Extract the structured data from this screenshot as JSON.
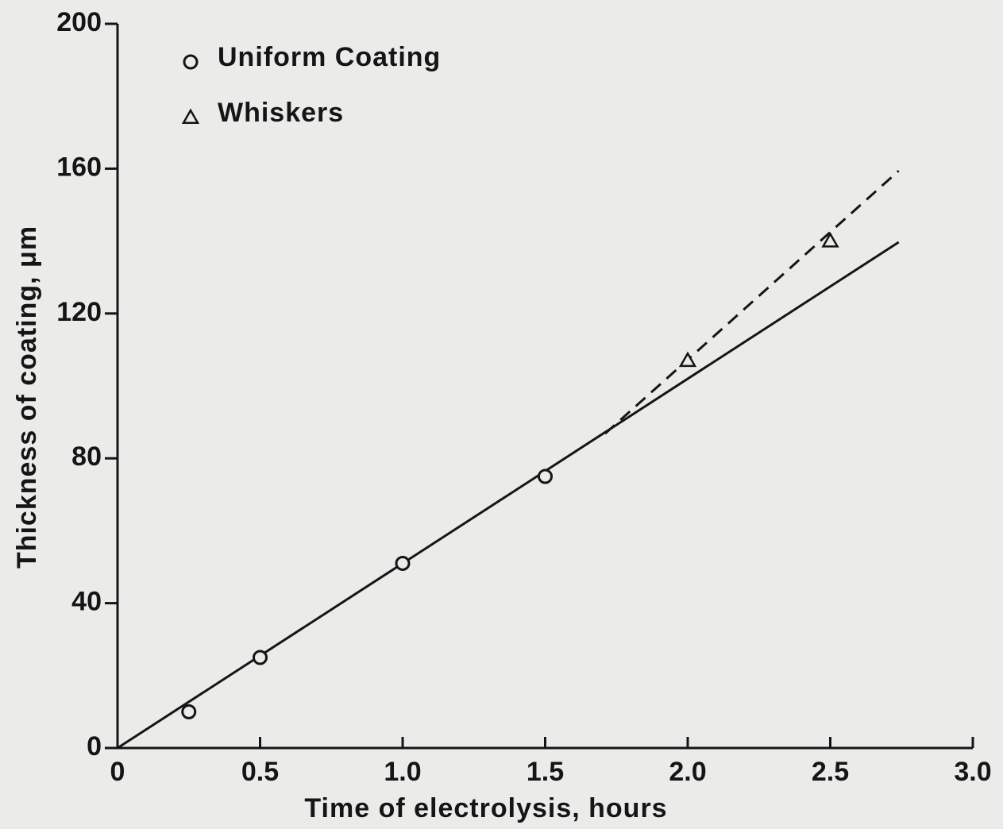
{
  "chart_data": {
    "type": "scatter",
    "x_label": "Time of electrolysis, hours",
    "y_label": "Thickness of coating, μm",
    "xlim": [
      0,
      3.0
    ],
    "ylim": [
      0,
      200
    ],
    "xticks": [
      0,
      0.5,
      {
        "value": 1,
        "label": "1.0"
      },
      1.5,
      {
        "value": 2,
        "label": "2.0"
      },
      2.5,
      {
        "value": 3,
        "label": "3.0"
      }
    ],
    "yticks": [
      0,
      40,
      80,
      120,
      160,
      200
    ],
    "color": "#151515",
    "legend": "upper left",
    "series": [
      {
        "name": "Uniform Coating",
        "marker": "circle",
        "x": [
          0.25,
          0.5,
          1.0,
          1.5
        ],
        "values": [
          10,
          25,
          51,
          75
        ]
      },
      {
        "name": "Whiskers",
        "marker": "triangle",
        "x": [
          2.0,
          2.5
        ],
        "values": [
          107,
          140
        ]
      }
    ],
    "lines": [
      {
        "style": "solid",
        "x": [
          0,
          2.74
        ],
        "values": [
          0,
          139.7
        ]
      },
      {
        "style": "dashed",
        "x": [
          1.71,
          2.74
        ],
        "values": [
          86.8,
          159.4
        ]
      }
    ]
  }
}
